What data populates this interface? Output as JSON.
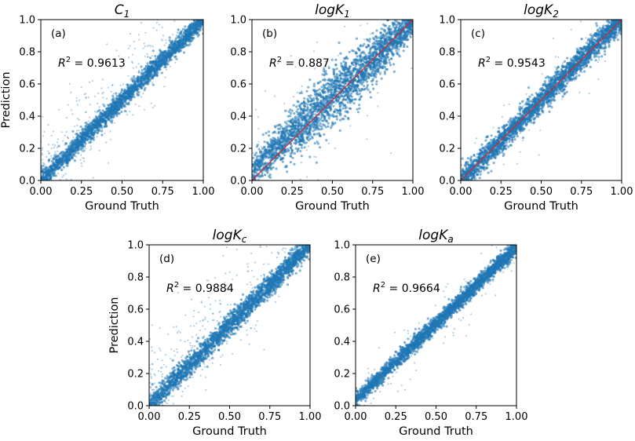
{
  "colors": {
    "points": "#1f77b4",
    "identity_line": "#d62728",
    "axes": "#000000",
    "background": "#ffffff"
  },
  "chart_data": [
    {
      "id": "a",
      "type": "scatter",
      "title_base": "C",
      "title_sub": "1",
      "label": "(a)",
      "r2_symbol": "R",
      "r2_exp": "2",
      "r2_text": " = 0.9613",
      "r2": 0.9613,
      "xlabel": "Ground Truth",
      "ylabel": "Prediction",
      "xlim": [
        0,
        1
      ],
      "ylim": [
        0,
        1
      ],
      "xticks": [
        "0.00",
        "0.25",
        "0.50",
        "0.75",
        "1.00"
      ],
      "yticks": [
        "0.0",
        "0.2",
        "0.4",
        "0.6",
        "0.8",
        "1.0"
      ],
      "identity_line": false,
      "distribution": {
        "slope": 1.0,
        "intercept": 0.0,
        "band_sd": 0.03,
        "scatter_fraction": 0.12,
        "scatter_bias": "above_low_x"
      }
    },
    {
      "id": "b",
      "type": "scatter",
      "title_base": "logK",
      "title_sub": "1",
      "label": "(b)",
      "r2_symbol": "R",
      "r2_exp": "2",
      "r2_text": " = 0.887",
      "r2": 0.887,
      "xlabel": "Ground Truth",
      "ylabel": "",
      "xlim": [
        0,
        1
      ],
      "ylim": [
        0,
        1
      ],
      "xticks": [
        "0.00",
        "0.25",
        "0.50",
        "0.75",
        "1.00"
      ],
      "yticks": [
        "0.0",
        "0.2",
        "0.4",
        "0.6",
        "0.8",
        "1.0"
      ],
      "identity_line": true,
      "distribution": {
        "slope": 0.92,
        "intercept": 0.06,
        "band_sd": 0.065,
        "scatter_fraction": 0.04,
        "scatter_bias": "none"
      }
    },
    {
      "id": "c",
      "type": "scatter",
      "title_base": "logK",
      "title_sub": "2",
      "label": "(c)",
      "r2_symbol": "R",
      "r2_exp": "2",
      "r2_text": " = 0.9543",
      "r2": 0.9543,
      "xlabel": "Ground Truth",
      "ylabel": "",
      "xlim": [
        0,
        1
      ],
      "ylim": [
        0,
        1
      ],
      "xticks": [
        "0.00",
        "0.25",
        "0.50",
        "0.75",
        "1.00"
      ],
      "yticks": [
        "0.0",
        "0.2",
        "0.4",
        "0.6",
        "0.8",
        "1.0"
      ],
      "identity_line": true,
      "distribution": {
        "slope": 1.0,
        "intercept": 0.0,
        "band_sd": 0.04,
        "scatter_fraction": 0.03,
        "scatter_bias": "none"
      }
    },
    {
      "id": "d",
      "type": "scatter",
      "title_base": "logK",
      "title_sub": "c",
      "label": "(d)",
      "r2_symbol": "R",
      "r2_exp": "2",
      "r2_text": " = 0.9884",
      "r2": 0.9884,
      "xlabel": "Ground Truth",
      "ylabel": "Prediction",
      "xlim": [
        0,
        1
      ],
      "ylim": [
        0,
        1
      ],
      "xticks": [
        "0.00",
        "0.25",
        "0.50",
        "0.75",
        "1.00"
      ],
      "yticks": [
        "0.0",
        "0.2",
        "0.4",
        "0.6",
        "0.8",
        "1.0"
      ],
      "identity_line": false,
      "distribution": {
        "slope": 1.0,
        "intercept": 0.0,
        "band_sd": 0.035,
        "scatter_fraction": 0.12,
        "scatter_bias": "above_low_x"
      }
    },
    {
      "id": "e",
      "type": "scatter",
      "title_base": "logK",
      "title_sub": "a",
      "label": "(e)",
      "r2_symbol": "R",
      "r2_exp": "2",
      "r2_text": " = 0.9664",
      "r2": 0.9664,
      "xlabel": "Ground Truth",
      "ylabel": "",
      "xlim": [
        0,
        1
      ],
      "ylim": [
        0,
        1
      ],
      "xticks": [
        "0.00",
        "0.25",
        "0.50",
        "0.75",
        "1.00"
      ],
      "yticks": [
        "0.0",
        "0.2",
        "0.4",
        "0.6",
        "0.8",
        "1.0"
      ],
      "identity_line": false,
      "distribution": {
        "slope": 0.95,
        "intercept": 0.035,
        "band_sd": 0.025,
        "scatter_fraction": 0.04,
        "scatter_bias": "none"
      }
    }
  ]
}
